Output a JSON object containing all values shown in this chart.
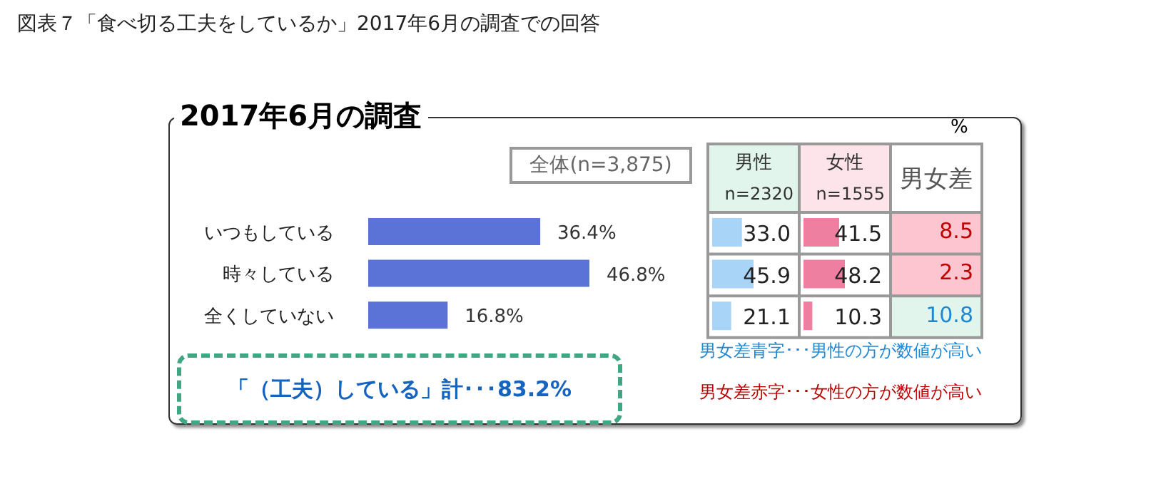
{
  "chart_data": [
    {
      "type": "bar",
      "orientation": "horizontal",
      "title": "図表７「食べ切る工夫をしているか」2017年6月の調査での回答",
      "subtitle": "2017年6月の調査",
      "categories": [
        "いつもしている",
        "時々している",
        "全くしていない"
      ],
      "values": [
        36.4,
        46.8,
        16.8
      ],
      "value_labels": [
        "36.4%",
        "46.8%",
        "16.8%"
      ],
      "color": "#5b73d6",
      "tick_labels": "y",
      "annotations": [
        "全体(n=3,875)",
        "「（工夫）している」計･･･83.2%"
      ]
    },
    {
      "type": "bar",
      "orientation": "horizontal",
      "title": "男性",
      "subtitle": "n=2320",
      "categories": [
        null,
        null,
        null
      ],
      "tick_labels": false,
      "color": "#a8d4f8",
      "values": [
        33.0,
        45.9,
        21.1
      ],
      "value_labels": [
        "33.0",
        "45.9",
        "21.1"
      ]
    },
    {
      "type": "bar",
      "orientation": "horizontal",
      "title": "女性",
      "subtitle": "n=1555",
      "categories": [
        null,
        null,
        null
      ],
      "tick_labels": false,
      "color": "#ef7fa1",
      "values": [
        41.5,
        48.2,
        10.3
      ],
      "value_labels": [
        "41.5",
        "48.2",
        "10.3"
      ]
    },
    {
      "type": "other",
      "title": "男女差",
      "ylabel": "%",
      "values": [
        8.5,
        2.3,
        10.8
      ],
      "value_labels": [
        "8.5",
        "2.3",
        "10.8"
      ],
      "colors": [
        "#c00000",
        "#c00000",
        "#1e88d2"
      ],
      "annotations": [
        "男女差青字･･･男性の方が数値が高い",
        "男女差赤字･･･女性の方が数値が高い"
      ]
    }
  ]
}
